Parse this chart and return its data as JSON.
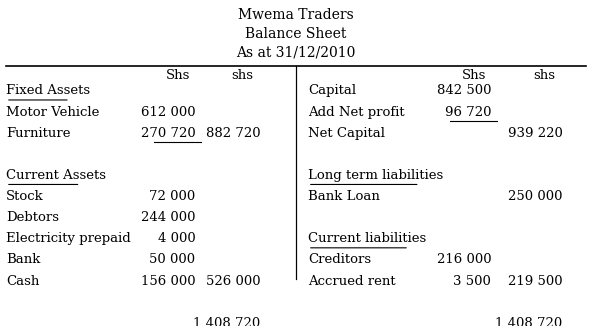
{
  "title_lines": [
    "Mwema Traders",
    "Balance Sheet",
    "As at 31/12/2010"
  ],
  "header_left": [
    "",
    "Shs",
    "shs"
  ],
  "header_right": [
    "",
    "Shs",
    "shs"
  ],
  "left_section": [
    {
      "label": "Fixed Assets",
      "col1": "",
      "col2": "",
      "underline_label": true
    },
    {
      "label": "Motor Vehicle",
      "col1": "612 000",
      "col2": ""
    },
    {
      "label": "Furniture",
      "col1": "270 720",
      "col2": "882 720",
      "underline_col1": true
    },
    {
      "label": "",
      "col1": "",
      "col2": ""
    },
    {
      "label": "Current Assets",
      "col1": "",
      "col2": "",
      "underline_label": true
    },
    {
      "label": "Stock",
      "col1": "72 000",
      "col2": ""
    },
    {
      "label": "Debtors",
      "col1": "244 000",
      "col2": ""
    },
    {
      "label": "Electricity prepaid",
      "col1": "4 000",
      "col2": ""
    },
    {
      "label": "Bank",
      "col1": "50 000",
      "col2": ""
    },
    {
      "label": "Cash",
      "col1": "156 000",
      "col2": "526 000",
      "underline_col1": true
    },
    {
      "label": "",
      "col1": "",
      "col2": ""
    },
    {
      "label": "",
      "col1": "",
      "col2": "1 408 720",
      "double_underline_col2": true
    }
  ],
  "right_section": [
    {
      "label": "Capital",
      "col1": "842 500",
      "col2": ""
    },
    {
      "label": "Add Net profit",
      "col1": "96 720",
      "col2": "",
      "underline_col1": true
    },
    {
      "label": "Net Capital",
      "col1": "",
      "col2": "939 220"
    },
    {
      "label": "",
      "col1": "",
      "col2": ""
    },
    {
      "label": "Long term liabilities",
      "col1": "",
      "col2": "",
      "underline_label": true
    },
    {
      "label": "Bank Loan",
      "col1": "",
      "col2": "250 000"
    },
    {
      "label": "",
      "col1": "",
      "col2": ""
    },
    {
      "label": "Current liabilities",
      "col1": "",
      "col2": "",
      "underline_label": true
    },
    {
      "label": "Creditors",
      "col1": "216 000",
      "col2": ""
    },
    {
      "label": "Accrued rent",
      "col1": "3 500",
      "col2": "219 500",
      "underline_col1": true
    },
    {
      "label": "",
      "col1": "",
      "col2": ""
    },
    {
      "label": "",
      "col1": "",
      "col2": "1 408 720",
      "double_underline_col2": true
    }
  ],
  "bg_color": "#ffffff",
  "text_color": "#000000",
  "font_size": 9.5,
  "title_font_size": 10
}
